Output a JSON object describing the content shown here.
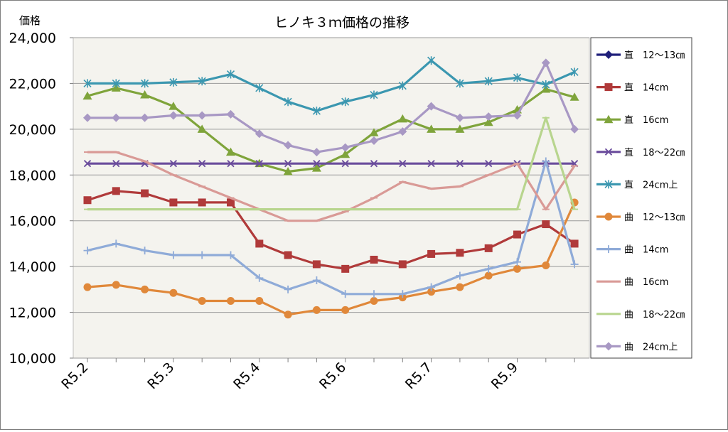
{
  "chart_data": {
    "type": "line",
    "title": "ヒノキ３ｍ価格の推移",
    "ylabel": "価格",
    "xlabel": "",
    "ylim": [
      10000,
      24000
    ],
    "yticks": [
      10000,
      12000,
      14000,
      16000,
      18000,
      20000,
      22000,
      24000
    ],
    "ytick_labels": [
      "10,000",
      "12,000",
      "14,000",
      "16,000",
      "18,000",
      "20,000",
      "22,000",
      "24,000"
    ],
    "xtick_labels": [
      "R5.2",
      "R5.3",
      "R5.4",
      "R5.6",
      "R5.7",
      "R5.9"
    ],
    "xtick_positions": [
      0,
      3,
      6,
      9,
      12,
      15
    ],
    "num_points": 18,
    "grid": "horizontal",
    "legend_position": "right",
    "plot_background": "#f4f3ee",
    "series": [
      {
        "name": "直　12～13㎝",
        "color": "#1f1f7a",
        "marker": "diamond",
        "values": [
          null,
          null,
          null,
          null,
          null,
          null,
          null,
          null,
          null,
          null,
          null,
          null,
          null,
          null,
          null,
          null,
          null,
          null
        ]
      },
      {
        "name": "直　14cm",
        "color": "#b03a3a",
        "marker": "square",
        "values": [
          16900,
          17300,
          17200,
          16800,
          16800,
          16800,
          15000,
          14500,
          14100,
          13900,
          14300,
          14100,
          14550,
          14600,
          14800,
          15400,
          15850,
          15000
        ]
      },
      {
        "name": "直　16cm",
        "color": "#7fa43b",
        "marker": "triangle",
        "values": [
          21450,
          21800,
          21500,
          21000,
          20000,
          19000,
          18500,
          18150,
          18300,
          18900,
          19850,
          20450,
          20000,
          20000,
          20300,
          20850,
          21750,
          21400
        ]
      },
      {
        "name": "直　18～22㎝",
        "color": "#6a4c9c",
        "marker": "x",
        "values": [
          18500,
          18500,
          18500,
          18500,
          18500,
          18500,
          18500,
          18500,
          18500,
          18500,
          18500,
          18500,
          18500,
          18500,
          18500,
          18500,
          18500,
          18500
        ]
      },
      {
        "name": "直　24cm上",
        "color": "#3b97b0",
        "marker": "asterisk",
        "values": [
          22000,
          22000,
          22000,
          22050,
          22100,
          22400,
          21800,
          21200,
          20800,
          21200,
          21500,
          21900,
          23000,
          22000,
          22100,
          22250,
          21950,
          22500
        ]
      },
      {
        "name": "曲　12～13㎝",
        "color": "#e0883a",
        "marker": "circle",
        "values": [
          13100,
          13200,
          13000,
          12850,
          12500,
          12500,
          12500,
          11900,
          12100,
          12100,
          12500,
          12650,
          12900,
          13100,
          13600,
          13900,
          14050,
          16800
        ]
      },
      {
        "name": "曲　14cm",
        "color": "#8fabd8",
        "marker": "plus",
        "values": [
          14700,
          15000,
          14700,
          14500,
          14500,
          14500,
          13500,
          13000,
          13400,
          12800,
          12800,
          12800,
          13100,
          13600,
          13900,
          14200,
          18600,
          14100
        ]
      },
      {
        "name": "曲　16cm",
        "color": "#d99a96",
        "marker": "dash",
        "values": [
          19000,
          19000,
          18600,
          18000,
          17500,
          17000,
          16500,
          16000,
          16000,
          16400,
          17000,
          17700,
          17400,
          17500,
          18000,
          18500,
          16500,
          18400
        ]
      },
      {
        "name": "曲　18～22㎝",
        "color": "#b8d58e",
        "marker": "dash",
        "values": [
          16500,
          16500,
          16500,
          16500,
          16500,
          16500,
          16500,
          16500,
          16500,
          16500,
          16500,
          16500,
          16500,
          16500,
          16500,
          16500,
          20500,
          16500
        ]
      },
      {
        "name": "曲　24cm上",
        "color": "#a898c4",
        "marker": "diamond",
        "values": [
          20500,
          20500,
          20500,
          20600,
          20600,
          20650,
          19800,
          19300,
          19000,
          19200,
          19500,
          19900,
          21000,
          20500,
          20550,
          20600,
          22900,
          20000
        ]
      }
    ]
  }
}
